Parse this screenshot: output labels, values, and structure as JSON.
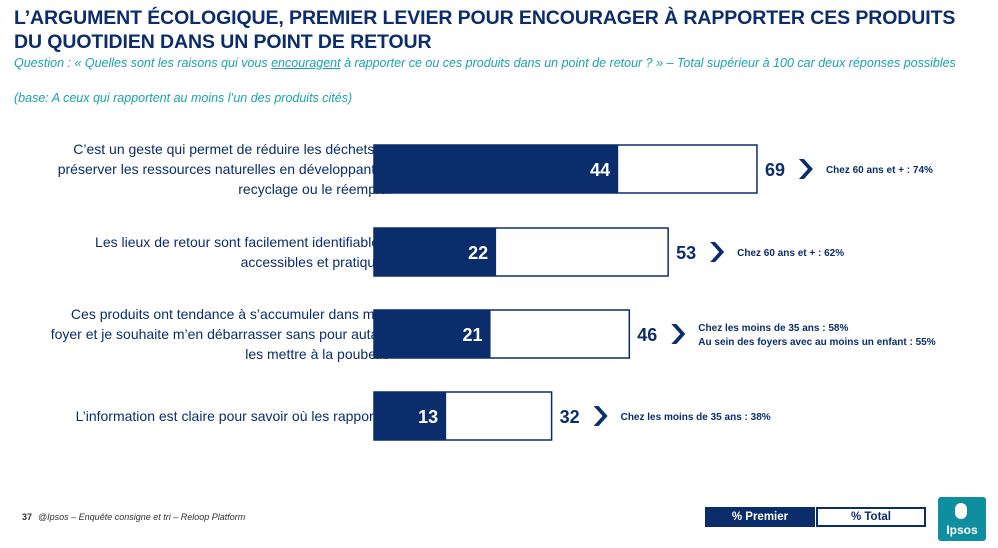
{
  "title": "L’ARGUMENT ÉCOLOGIQUE, PREMIER LEVIER POUR ENCOURAGER À RAPPORTER CES PRODUITS DU QUOTIDIEN DANS UN POINT DE RETOUR",
  "question": {
    "before": "Question : « Quelles sont les raisons qui vous ",
    "underlined": "encouragent",
    "after": " à rapporter ce ou ces produits dans un point de retour ? » – Total supérieur à 100 car deux réponses possibles"
  },
  "base": "(base: A ceux qui rapportent au moins l’un des produits cités)",
  "footer": {
    "page": "37",
    "source": "@Ipsos – Enquête consigne et tri – Reloop Platform"
  },
  "legend": {
    "premier": "% Premier",
    "total": "% Total"
  },
  "logo": {
    "text": "Ipsos"
  },
  "colors": {
    "navy": "#0b2d6b",
    "teal": "#1aa3a3",
    "logo": "#0f8ea0"
  },
  "chart_data": {
    "type": "bar",
    "orientation": "horizontal",
    "categories": [
      [
        "C’est un geste qui permet de réduire les déchets et",
        "préserver les ressources naturelles en développant le",
        "recyclage ou le réemploi"
      ],
      [
        "Les lieux de retour sont facilement identifiables,",
        "accessibles et pratiques"
      ],
      [
        "Ces produits ont tendance à s’accumuler dans mon",
        "foyer et je souhaite m’en débarrasser sans pour autant",
        "les mettre à la poubelle"
      ],
      [
        "L’information est claire pour savoir où les rapporter"
      ]
    ],
    "series": [
      {
        "name": "% Premier",
        "values": [
          44,
          22,
          21,
          13
        ],
        "color": "#0b2d6b"
      },
      {
        "name": "% Total",
        "values": [
          69,
          53,
          46,
          32
        ],
        "color": "#ffffff"
      }
    ],
    "annotations": [
      [
        "Chez 60 ans et + : 74%"
      ],
      [
        "Chez 60 ans et + : 62%"
      ],
      [
        "Chez les moins de 35 ans : 58%",
        "Au sein des foyers avec au moins un enfant : 55%"
      ],
      [
        "Chez les moins de 35 ans : 38%"
      ]
    ],
    "xlim": [
      0,
      69
    ],
    "grid": false,
    "legend": "bottom-right"
  }
}
